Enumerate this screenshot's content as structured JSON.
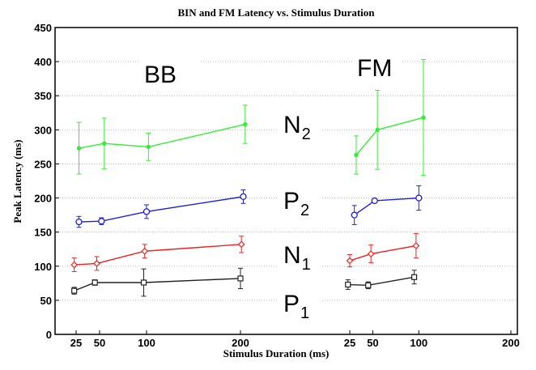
{
  "chart_data": {
    "type": "line",
    "title": "BIN and FM Latency vs. Stimulus Duration",
    "xlabel": "Stimulus Duration (ms)",
    "ylabel": "Peak Latency (ms)",
    "ylim": [
      0,
      450
    ],
    "y_ticks": [
      "0",
      "50",
      "100",
      "150",
      "200",
      "250",
      "300",
      "350",
      "400",
      "450"
    ],
    "x_tick_labels": [
      "25",
      "50",
      "100",
      "200",
      "25",
      "50",
      "100",
      "200"
    ],
    "grid": "horizontal dotted",
    "annotations": [
      {
        "main": "BB",
        "sub": ""
      },
      {
        "main": "FM",
        "sub": ""
      },
      {
        "main": "N",
        "sub": "2"
      },
      {
        "main": "P",
        "sub": "2"
      },
      {
        "main": "N",
        "sub": "1"
      },
      {
        "main": "P",
        "sub": "1"
      }
    ],
    "panels": [
      {
        "name": "BB",
        "x_ticks": [
          25,
          50,
          100,
          200
        ],
        "series": [
          {
            "name": "N2",
            "color": "#33ee33",
            "marker": "dot",
            "x": [
              28,
              55,
              102,
              205
            ],
            "y": [
              273,
              280,
              275,
              308
            ],
            "err": [
              38,
              37,
              20,
              28
            ]
          },
          {
            "name": "P2",
            "color": "#1f1fdd",
            "marker": "circle",
            "x": [
              28,
              52,
              100,
              203
            ],
            "y": [
              165,
              166,
              180,
              202
            ],
            "err": [
              8,
              5,
              10,
              10
            ]
          },
          {
            "name": "N1",
            "color": "#ee2222",
            "marker": "diamond",
            "x": [
              23,
              47,
              98,
              201
            ],
            "y": [
              102,
              104,
              122,
              132
            ],
            "err": [
              10,
              10,
              10,
              12
            ]
          },
          {
            "name": "P1",
            "color": "#222222",
            "marker": "square",
            "x": [
              23,
              45,
              97,
              200
            ],
            "y": [
              64,
              76,
              76,
              82
            ],
            "err": [
              5,
              4,
              20,
              15
            ]
          }
        ]
      },
      {
        "name": "FM",
        "x_ticks": [
          25,
          50,
          100,
          200
        ],
        "series": [
          {
            "name": "N2",
            "color": "#33ee33",
            "marker": "dot",
            "x": [
              32,
              55,
              105
            ],
            "y": [
              263,
              300,
              318
            ],
            "err": [
              28,
              58,
              85
            ]
          },
          {
            "name": "P2",
            "color": "#1f1fdd",
            "marker": "circle",
            "x": [
              30,
              52,
              100
            ],
            "y": [
              175,
              196,
              200
            ],
            "err": [
              14,
              3,
              18
            ]
          },
          {
            "name": "N1",
            "color": "#ee2222",
            "marker": "diamond",
            "x": [
              25,
              48,
              97
            ],
            "y": [
              108,
              118,
              130
            ],
            "err": [
              9,
              13,
              18
            ]
          },
          {
            "name": "P1",
            "color": "#222222",
            "marker": "square",
            "x": [
              23,
              45,
              95
            ],
            "y": [
              73,
              72,
              84
            ],
            "err": [
              7,
              5,
              10
            ]
          }
        ]
      }
    ]
  }
}
